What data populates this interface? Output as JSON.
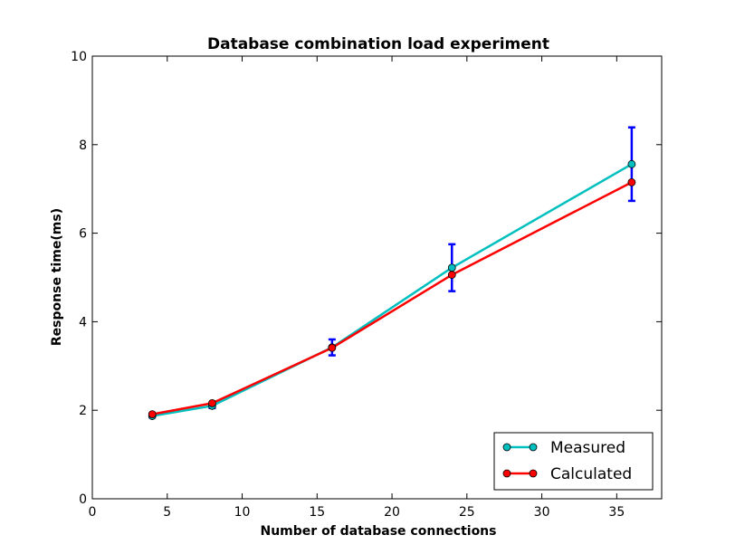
{
  "chart_data": {
    "type": "line",
    "title": "Database combination load experiment",
    "xlabel": "Number of database connections",
    "ylabel": "Response time(ms)",
    "xlim": [
      0,
      38
    ],
    "ylim": [
      0,
      10
    ],
    "xticks": [
      "0",
      "5",
      "10",
      "15",
      "20",
      "25",
      "30",
      "35"
    ],
    "yticks": [
      "0",
      "2",
      "4",
      "6",
      "8",
      "10"
    ],
    "grid": false,
    "legend_position": "lower-right",
    "x": [
      4,
      8,
      16,
      24,
      36
    ],
    "series": [
      {
        "name": "Measured",
        "color": "#00bfbf",
        "marker": "circle",
        "values": [
          1.87,
          2.1,
          3.42,
          5.22,
          7.56
        ],
        "error": [
          0.03,
          0.05,
          0.18,
          0.53,
          0.83
        ]
      },
      {
        "name": "Calculated",
        "color": "#ff0000",
        "marker": "circle",
        "values": [
          1.91,
          2.16,
          3.41,
          5.06,
          7.15
        ]
      }
    ],
    "errorbar_color": "#0000ff"
  }
}
